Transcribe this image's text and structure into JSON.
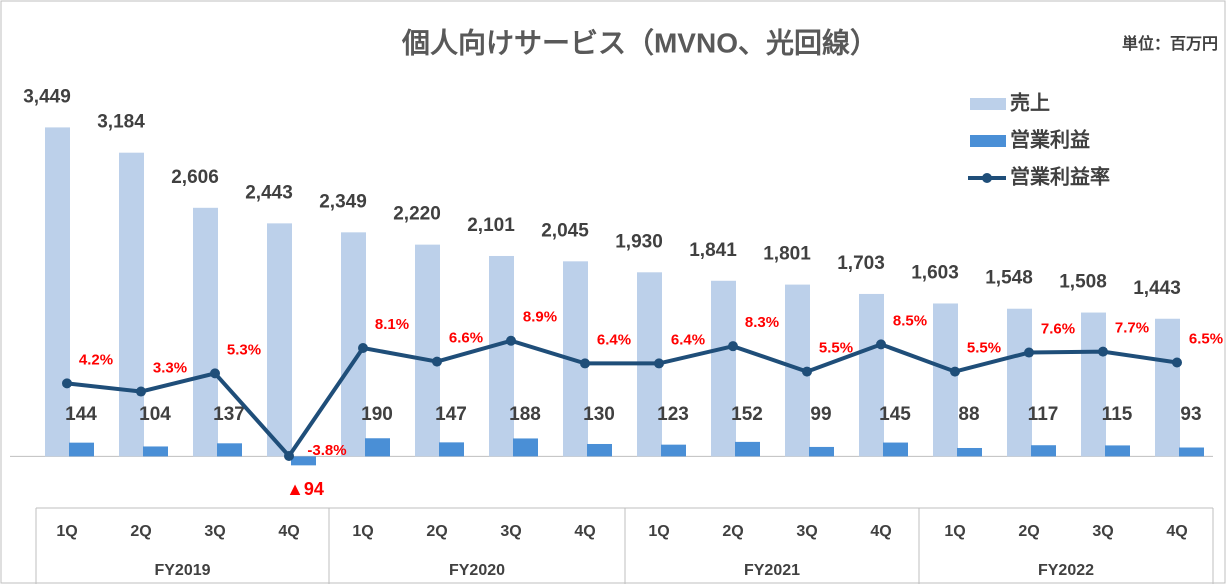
{
  "chart_data": {
    "type": "bar-line",
    "title": "個人向けサービス（MVNO、光回線）",
    "unit_note": "単位：百万円",
    "categories": [
      "1Q",
      "2Q",
      "3Q",
      "4Q",
      "1Q",
      "2Q",
      "3Q",
      "4Q",
      "1Q",
      "2Q",
      "3Q",
      "4Q",
      "1Q",
      "2Q",
      "3Q",
      "4Q"
    ],
    "groups": [
      "FY2019",
      "FY2020",
      "FY2021",
      "FY2022"
    ],
    "ylim": [
      -300,
      3600
    ],
    "y2lim": [
      -7,
      34
    ],
    "series": [
      {
        "name": "売上",
        "type": "bar",
        "color": "#bcd0ea",
        "values": [
          3449,
          3184,
          2606,
          2443,
          2349,
          2220,
          2101,
          2045,
          1930,
          1841,
          1801,
          1703,
          1603,
          1548,
          1508,
          1443
        ],
        "value_labels": [
          "3,449",
          "3,184",
          "2,606",
          "2,443",
          "2,349",
          "2,220",
          "2,101",
          "2,045",
          "1,930",
          "1,841",
          "1,801",
          "1,703",
          "1,603",
          "1,548",
          "1,508",
          "1,443"
        ]
      },
      {
        "name": "営業利益",
        "type": "bar",
        "color": "#4a8fd6",
        "values": [
          144,
          104,
          137,
          -94,
          190,
          147,
          188,
          130,
          123,
          152,
          99,
          145,
          88,
          117,
          115,
          93
        ],
        "value_labels": [
          "144",
          "104",
          "137",
          "▲94",
          "190",
          "147",
          "188",
          "130",
          "123",
          "152",
          "99",
          "145",
          "88",
          "117",
          "115",
          "93"
        ]
      },
      {
        "name": "営業利益率",
        "type": "line",
        "axis": "y2",
        "color": "#1f4e79",
        "values": [
          4.2,
          3.3,
          5.3,
          -3.8,
          8.1,
          6.6,
          8.9,
          6.4,
          6.4,
          8.3,
          5.5,
          8.5,
          5.5,
          7.6,
          7.7,
          6.5
        ],
        "value_labels": [
          "4.2%",
          "3.3%",
          "5.3%",
          "-3.8%",
          "8.1%",
          "6.6%",
          "8.9%",
          "6.4%",
          "6.4%",
          "8.3%",
          "5.5%",
          "8.5%",
          "5.5%",
          "7.6%",
          "7.7%",
          "6.5%"
        ]
      }
    ]
  }
}
